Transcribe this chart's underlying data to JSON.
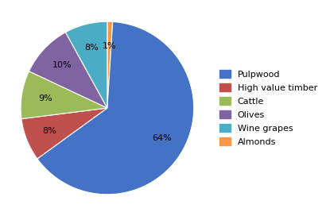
{
  "labels": [
    "Almonds",
    "Pulpwood",
    "High value timber",
    "Cattle",
    "Olives",
    "Wine grapes"
  ],
  "values": [
    1,
    64,
    8,
    9,
    10,
    8
  ],
  "colors": [
    "#F79646",
    "#4472C4",
    "#C0504D",
    "#9BBB59",
    "#8064A2",
    "#4BACC6"
  ],
  "legend_labels": [
    "Pulpwood",
    "High value timber",
    "Cattle",
    "Olives",
    "Wine grapes",
    "Almonds"
  ],
  "legend_colors": [
    "#4472C4",
    "#C0504D",
    "#9BBB59",
    "#8064A2",
    "#4BACC6",
    "#F79646"
  ],
  "startangle": 90,
  "pctdistance": 0.72,
  "title_fontsize": 10,
  "legend_fontsize": 8,
  "pct_fontsize": 8,
  "background_color": "#FFFFFF"
}
